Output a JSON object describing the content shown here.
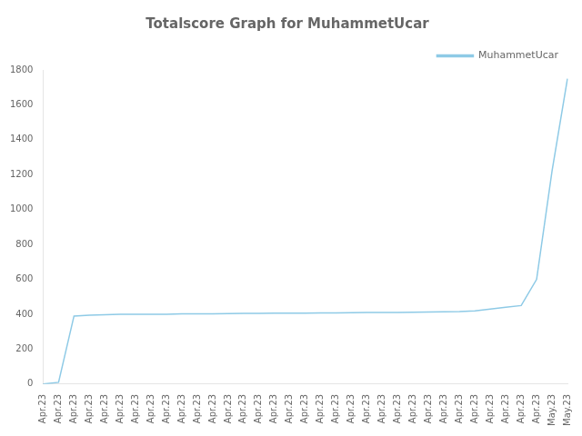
{
  "chart_data": {
    "type": "line",
    "title": "Totalscore Graph for MuhammetUcar",
    "categories": [
      "Apr.23",
      "Apr.23",
      "Apr.23",
      "Apr.23",
      "Apr.23",
      "Apr.23",
      "Apr.23",
      "Apr.23",
      "Apr.23",
      "Apr.23",
      "Apr.23",
      "Apr.23",
      "Apr.23",
      "Apr.23",
      "Apr.23",
      "Apr.23",
      "Apr.23",
      "Apr.23",
      "Apr.23",
      "Apr.23",
      "Apr.23",
      "Apr.23",
      "Apr.23",
      "Apr.23",
      "Apr.23",
      "Apr.23",
      "Apr.23",
      "Apr.23",
      "Apr.23",
      "Apr.23",
      "Apr.23",
      "Apr.23",
      "Apr.23",
      "May.23",
      "May.23"
    ],
    "series": [
      {
        "name": "MuhammetUcar",
        "color": "#8ecae6",
        "values": [
          0,
          10,
          390,
          395,
          398,
          400,
          400,
          400,
          400,
          402,
          403,
          403,
          404,
          405,
          405,
          406,
          406,
          407,
          408,
          408,
          409,
          410,
          410,
          411,
          412,
          413,
          414,
          415,
          420,
          430,
          440,
          450,
          600,
          1220,
          1750
        ]
      }
    ],
    "ylim": [
      0,
      1800
    ],
    "yticks": [
      0,
      200,
      400,
      600,
      800,
      1000,
      1200,
      1400,
      1600,
      1800
    ],
    "grid": false,
    "legend": "upper right"
  }
}
